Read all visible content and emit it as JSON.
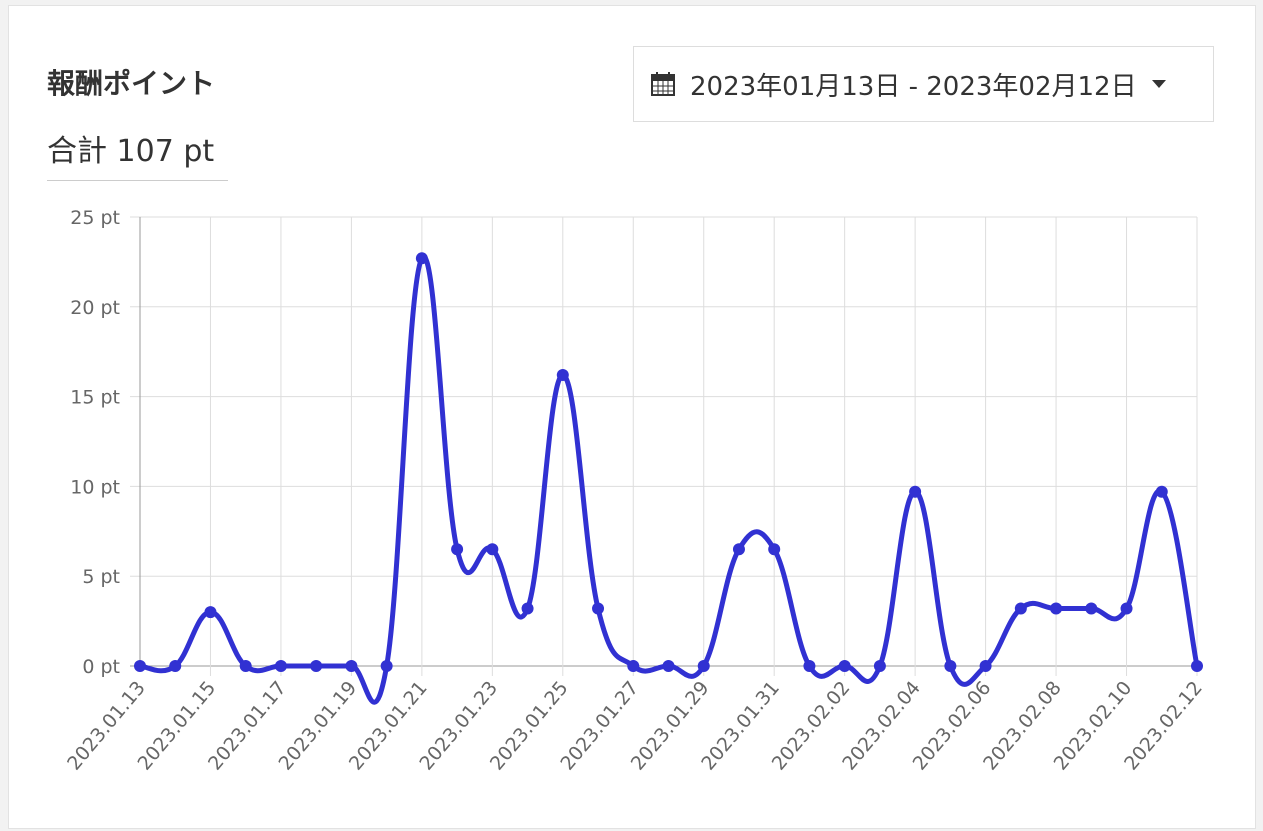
{
  "header": {
    "title": "報酬ポイント",
    "total": "合計 107 pt",
    "date_range": "2023年01月13日 - 2023年02月12日"
  },
  "chart_data": {
    "type": "line",
    "categories": [
      "2023.01.13",
      null,
      "2023.01.15",
      null,
      "2023.01.17",
      null,
      "2023.01.19",
      null,
      "2023.01.21",
      null,
      "2023.01.23",
      null,
      "2023.01.25",
      null,
      "2023.01.27",
      null,
      "2023.01.29",
      null,
      "2023.01.31",
      null,
      "2023.02.02",
      null,
      "2023.02.04",
      null,
      "2023.02.06",
      null,
      "2023.02.08",
      null,
      "2023.02.10",
      null,
      "2023.02.12"
    ],
    "series": [
      {
        "color": "#3131d2",
        "values": [
          0,
          0,
          3,
          0,
          0,
          0,
          0,
          0,
          22.7,
          6.5,
          6.5,
          3.2,
          16.2,
          3.2,
          0,
          0,
          0,
          6.5,
          6.5,
          0,
          0,
          0,
          9.7,
          0,
          0,
          3.2,
          3.2,
          3.2,
          3.2,
          9.7,
          0
        ]
      }
    ],
    "ylim": [
      0,
      25
    ],
    "yticks": [
      {
        "value": 0,
        "label": "0 pt"
      },
      {
        "value": 5,
        "label": "5 pt"
      },
      {
        "value": 10,
        "label": "10 pt"
      },
      {
        "value": 15,
        "label": "15 pt"
      },
      {
        "value": 20,
        "label": "20 pt"
      },
      {
        "value": 25,
        "label": "25 pt"
      }
    ],
    "grid": true
  }
}
